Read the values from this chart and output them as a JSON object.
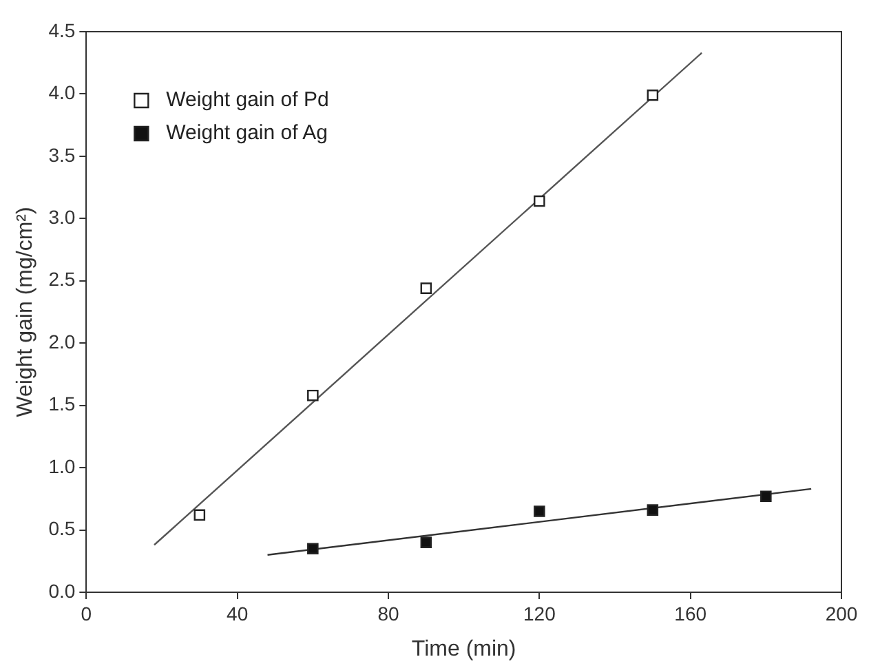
{
  "chart_data": {
    "type": "scatter",
    "xlabel": "Time (min)",
    "ylabel": "Weight gain (mg/cm²)",
    "xlim": [
      0,
      200
    ],
    "xticks": [
      0,
      40,
      80,
      120,
      160,
      200
    ],
    "ylim": [
      0,
      4.5
    ],
    "yticks": [
      {
        "value": 0,
        "label": "0.0"
      },
      {
        "value": 0.5,
        "label": "0.5"
      },
      {
        "value": 1,
        "label": "1.0"
      },
      {
        "value": 1.5,
        "label": "1.5"
      },
      {
        "value": 2,
        "label": "2.0"
      },
      {
        "value": 2.5,
        "label": "2.5"
      },
      {
        "value": 3,
        "label": "3.0"
      },
      {
        "value": 3.5,
        "label": "3.5"
      },
      {
        "value": 4,
        "label": "4.0"
      },
      {
        "value": 4.5,
        "label": "4.5"
      }
    ],
    "grid": false,
    "legend": "top left",
    "marker": "square",
    "series": [
      {
        "name": "Weight gain of Pd",
        "color": "#ffffff",
        "x": [
          30,
          60,
          90,
          120,
          150
        ],
        "values": [
          0.62,
          1.58,
          2.44,
          3.14,
          3.99
        ]
      },
      {
        "name": "Weight gain of Ag",
        "color": "#111111",
        "x": [
          60,
          90,
          120,
          150,
          180
        ],
        "values": [
          0.35,
          0.4,
          0.65,
          0.66,
          0.77
        ]
      },
      {
        "type": "line",
        "color": "#555555",
        "marker": "none",
        "x": [
          18,
          163
        ],
        "values": [
          0.38,
          4.33
        ]
      },
      {
        "type": "line",
        "color": "#333333",
        "marker": "none",
        "x": [
          48,
          192
        ],
        "values": [
          0.3,
          0.83
        ]
      }
    ]
  }
}
